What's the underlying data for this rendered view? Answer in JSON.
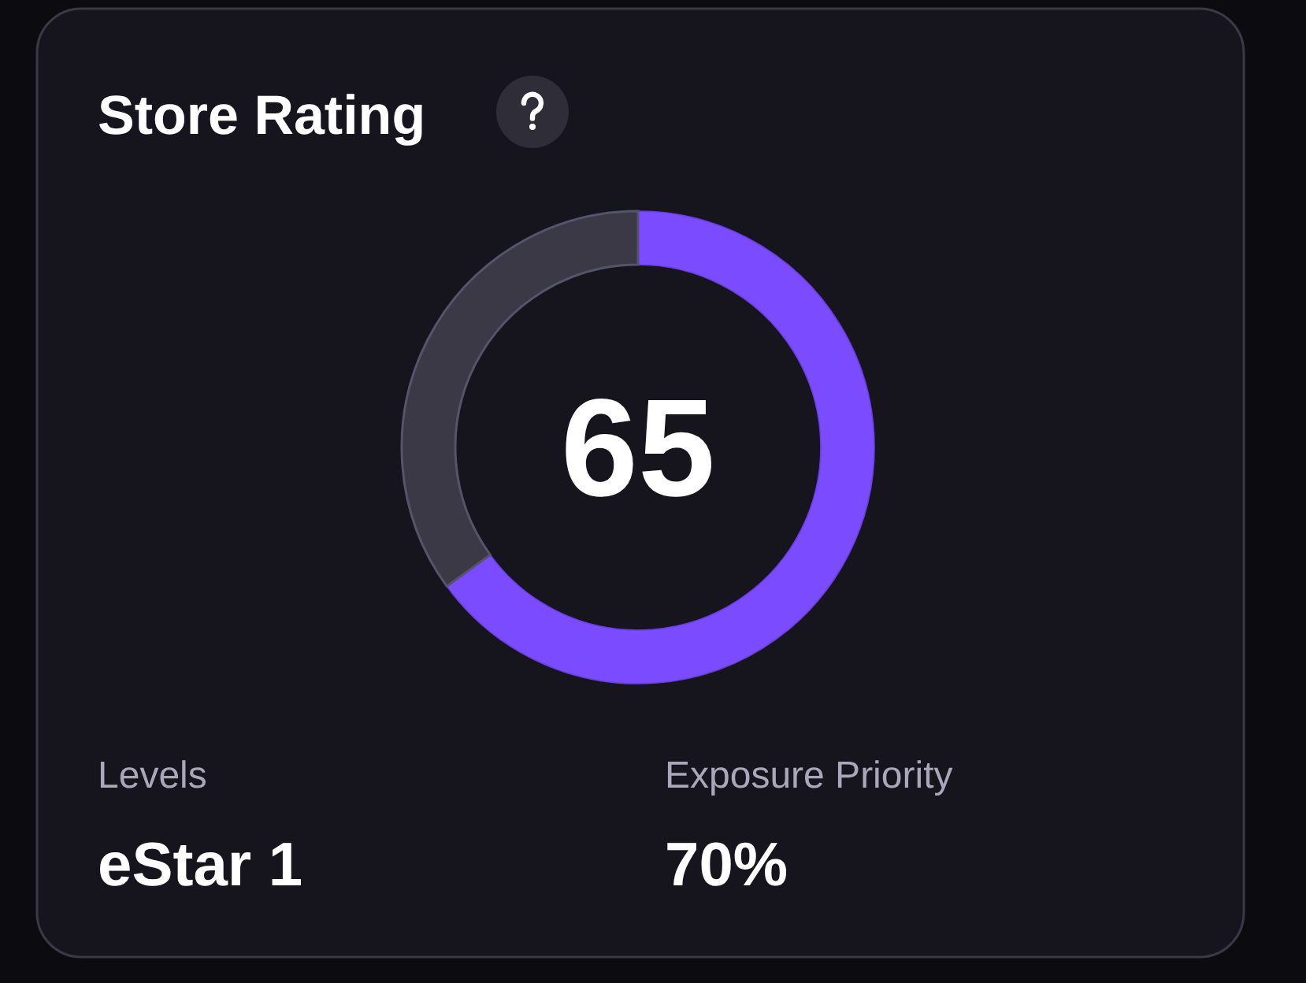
{
  "chart_data": {
    "type": "donut",
    "title": "Store Rating",
    "categories": [
      null,
      null
    ],
    "values": [
      65,
      35
    ],
    "colors": [
      "#7b4cff",
      "#3a3945"
    ],
    "annotations": [
      "65",
      "Levels",
      "eStar 1",
      "Exposure Priority",
      "70%"
    ]
  }
}
